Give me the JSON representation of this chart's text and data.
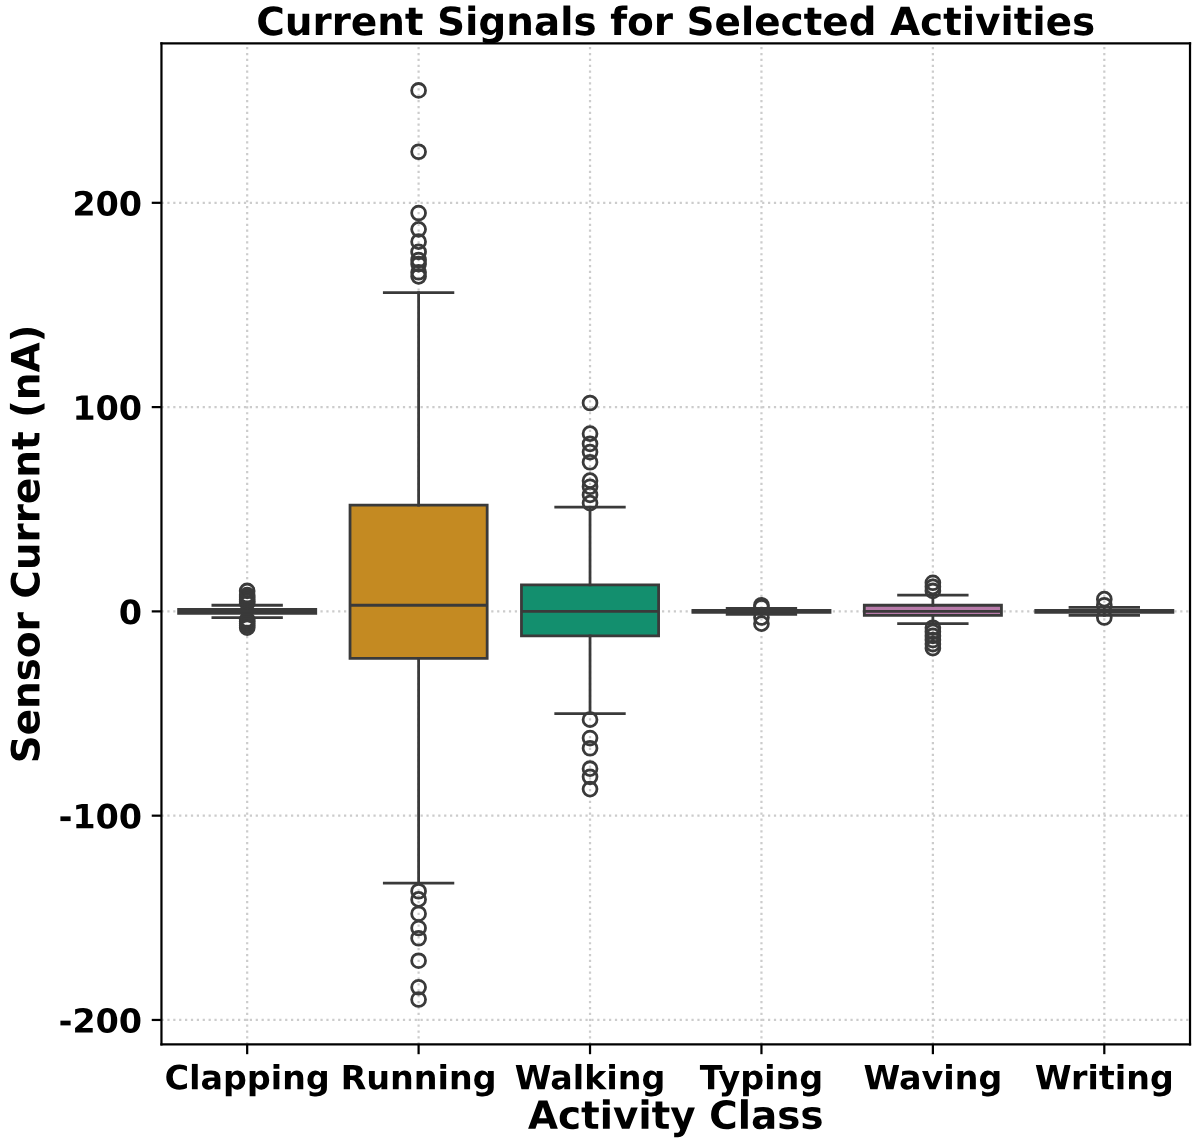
{
  "chart_data": {
    "type": "box",
    "title": "Current Signals for Selected Activities",
    "xlabel": "Activity Class",
    "ylabel": "Sensor Current (nA)",
    "categories": [
      "Clapping",
      "Running",
      "Walking",
      "Typing",
      "Waving",
      "Writing"
    ],
    "colors": [
      "#2e6e9e",
      "#c48a22",
      "#138f6e",
      "#b5552a",
      "#b77aa9",
      "#a98a5e"
    ],
    "boxes": [
      {
        "low": -3,
        "q1": -1,
        "median": 0,
        "q3": 1,
        "high": 3,
        "outliers": [
          4,
          5,
          6,
          7,
          8,
          10,
          -4,
          -5,
          -6,
          -7,
          -8
        ]
      },
      {
        "low": -133,
        "q1": -23,
        "median": 3,
        "q3": 52,
        "high": 156,
        "outliers": [
          164,
          166,
          170,
          172,
          176,
          181,
          187,
          195,
          225,
          255,
          -137,
          -141,
          -148,
          -155,
          -160,
          -171,
          -184,
          -190
        ]
      },
      {
        "low": -50,
        "q1": -12,
        "median": 0,
        "q3": 13,
        "high": 51,
        "outliers": [
          53,
          57,
          61,
          64,
          73,
          78,
          82,
          87,
          102,
          -53,
          -62,
          -67,
          -77,
          -81,
          -87
        ]
      },
      {
        "low": -1.5,
        "q1": -0.5,
        "median": 0,
        "q3": 0.5,
        "high": 1.5,
        "outliers": [
          2,
          3,
          -3,
          -6
        ]
      },
      {
        "low": -6,
        "q1": -2,
        "median": 0,
        "q3": 3,
        "high": 8,
        "outliers": [
          10,
          12,
          14,
          -8,
          -10,
          -12,
          -14,
          -16,
          -18
        ]
      },
      {
        "low": -2,
        "q1": -0.5,
        "median": 0,
        "q3": 0.5,
        "high": 2,
        "outliers": [
          3,
          6,
          -3
        ]
      }
    ],
    "ylim": [
      -212,
      278
    ],
    "yticks": [
      -200,
      -100,
      0,
      100,
      200
    ],
    "grid": true
  }
}
